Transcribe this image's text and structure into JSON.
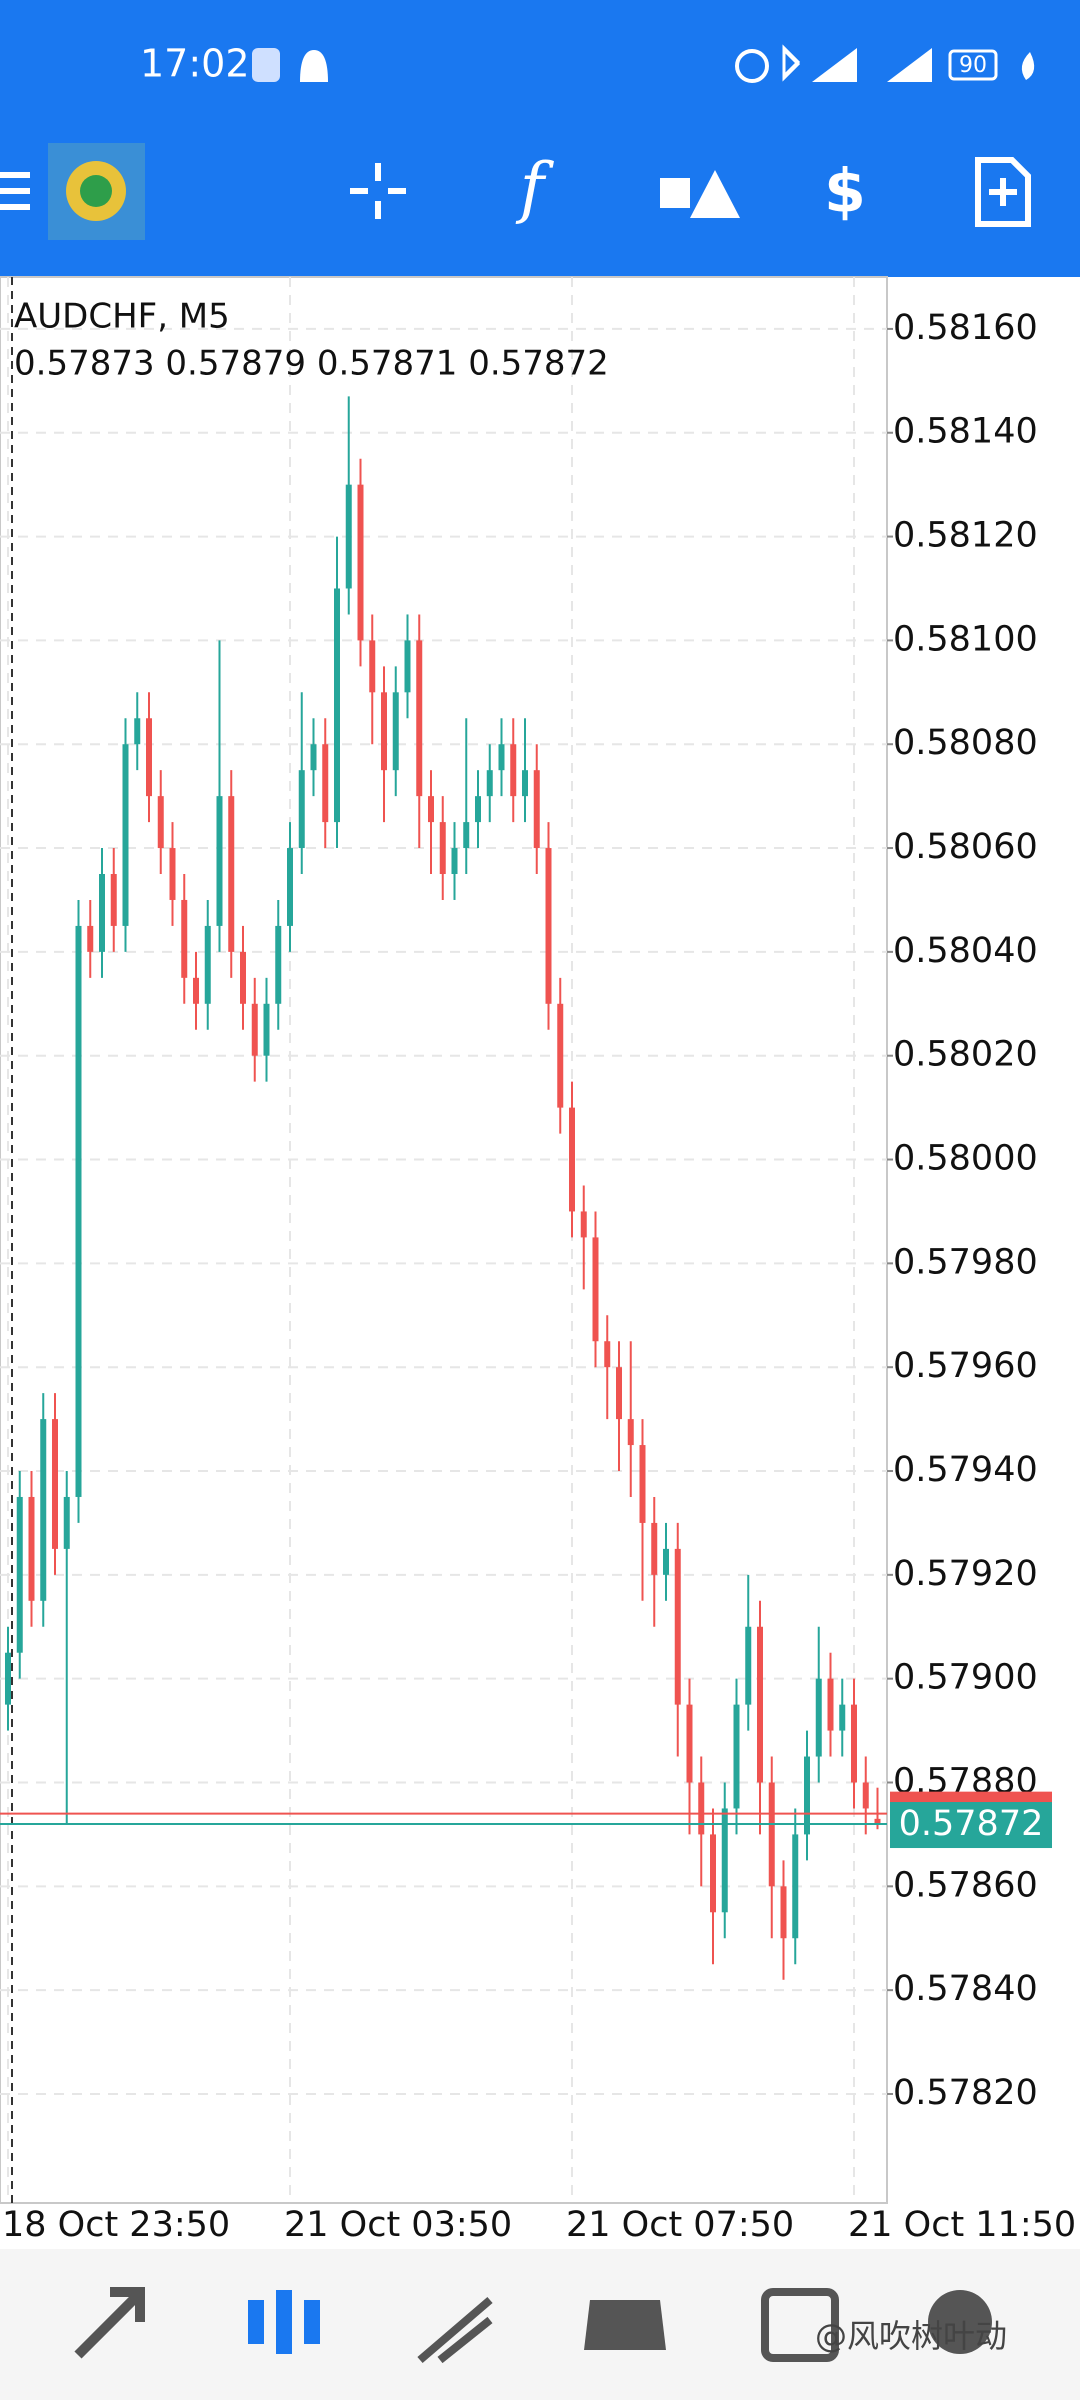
{
  "status_bar": {
    "time": "17:02",
    "battery": "90"
  },
  "watermark": "@风吹树叶动",
  "chart_data": {
    "type": "candlestick",
    "title": "AUDCHF, M5",
    "subtitle": "0.57873 0.57879 0.57871 0.57872",
    "categories": [
      "18 Oct 23:50",
      null,
      null,
      null,
      null,
      null,
      null,
      null,
      null,
      null,
      null,
      null,
      null,
      null,
      null,
      null,
      null,
      null,
      null,
      null,
      null,
      null,
      null,
      null,
      "21 Oct 03:50",
      null,
      null,
      null,
      null,
      null,
      null,
      null,
      null,
      null,
      null,
      null,
      null,
      null,
      null,
      null,
      null,
      null,
      null,
      null,
      null,
      null,
      null,
      null,
      "21 Oct 07:50",
      null,
      null,
      null,
      null,
      null,
      null,
      null,
      null,
      null,
      null,
      null,
      null,
      null,
      null,
      null,
      null,
      null,
      null,
      null,
      null,
      null,
      null,
      null,
      "21 Oct 11:50",
      null,
      null
    ],
    "open": [
      0.57895,
      0.57905,
      0.57935,
      0.57915,
      0.5795,
      0.57925,
      0.57935,
      0.58045,
      0.5804,
      0.58055,
      0.58045,
      0.5808,
      0.58085,
      0.5807,
      0.5806,
      0.5805,
      0.58035,
      0.5803,
      0.58045,
      0.5807,
      0.5804,
      0.5803,
      0.5802,
      0.5803,
      0.58045,
      0.5806,
      0.58075,
      0.5808,
      0.58065,
      0.5811,
      0.5813,
      0.581,
      0.5809,
      0.58075,
      0.5809,
      0.581,
      0.5807,
      0.58065,
      0.58055,
      0.5806,
      0.58065,
      0.5807,
      0.58075,
      0.5808,
      0.5807,
      0.58075,
      0.5806,
      0.5803,
      0.5801,
      0.5799,
      0.57985,
      0.57965,
      0.5796,
      0.5795,
      0.57945,
      0.5793,
      0.5792,
      0.57925,
      0.57895,
      0.5788,
      0.5787,
      0.57855,
      0.57875,
      0.57895,
      0.5791,
      0.5788,
      0.5786,
      0.5785,
      0.5787,
      0.57885,
      0.579,
      0.5789,
      0.57895,
      0.5788,
      0.57873
    ],
    "high": [
      0.5791,
      0.5794,
      0.5794,
      0.57955,
      0.57955,
      0.5794,
      0.5805,
      0.5805,
      0.5806,
      0.5806,
      0.58085,
      0.5809,
      0.5809,
      0.58075,
      0.58065,
      0.58055,
      0.5804,
      0.5805,
      0.581,
      0.58075,
      0.58045,
      0.58035,
      0.58035,
      0.5805,
      0.58065,
      0.5809,
      0.58085,
      0.58085,
      0.5812,
      0.58147,
      0.58135,
      0.58105,
      0.58095,
      0.58095,
      0.58105,
      0.58105,
      0.58075,
      0.5807,
      0.58065,
      0.58085,
      0.58075,
      0.5808,
      0.58085,
      0.58085,
      0.58085,
      0.5808,
      0.58065,
      0.58035,
      0.58015,
      0.57995,
      0.5799,
      0.5797,
      0.57965,
      0.57965,
      0.5795,
      0.57935,
      0.5793,
      0.5793,
      0.579,
      0.57885,
      0.57875,
      0.5788,
      0.579,
      0.5792,
      0.57915,
      0.57885,
      0.57865,
      0.57875,
      0.5789,
      0.5791,
      0.57905,
      0.579,
      0.579,
      0.57885,
      0.57879
    ],
    "low": [
      0.5789,
      0.579,
      0.5791,
      0.5791,
      0.5792,
      0.57872,
      0.5793,
      0.58035,
      0.58035,
      0.5804,
      0.5804,
      0.58075,
      0.58065,
      0.58055,
      0.58045,
      0.5803,
      0.58025,
      0.58025,
      0.5804,
      0.58035,
      0.58025,
      0.58015,
      0.58015,
      0.58025,
      0.5804,
      0.58055,
      0.5807,
      0.5806,
      0.5806,
      0.58105,
      0.58095,
      0.5808,
      0.58065,
      0.5807,
      0.58085,
      0.5806,
      0.58055,
      0.5805,
      0.5805,
      0.58055,
      0.5806,
      0.58065,
      0.5807,
      0.58065,
      0.58065,
      0.58055,
      0.58025,
      0.58005,
      0.57985,
      0.57975,
      0.5796,
      0.5795,
      0.5794,
      0.57935,
      0.57915,
      0.5791,
      0.57915,
      0.57885,
      0.5787,
      0.5786,
      0.57845,
      0.5785,
      0.5787,
      0.5789,
      0.5787,
      0.5785,
      0.57842,
      0.57845,
      0.57865,
      0.5788,
      0.57885,
      0.57885,
      0.57875,
      0.5787,
      0.57871
    ],
    "close": [
      0.57905,
      0.57935,
      0.57915,
      0.5795,
      0.57925,
      0.57935,
      0.58045,
      0.5804,
      0.58055,
      0.58045,
      0.5808,
      0.58085,
      0.5807,
      0.5806,
      0.5805,
      0.58035,
      0.5803,
      0.58045,
      0.5807,
      0.5804,
      0.5803,
      0.5802,
      0.5803,
      0.58045,
      0.5806,
      0.58075,
      0.5808,
      0.58065,
      0.5811,
      0.5813,
      0.581,
      0.5809,
      0.58075,
      0.5809,
      0.581,
      0.5807,
      0.58065,
      0.58055,
      0.5806,
      0.58065,
      0.5807,
      0.58075,
      0.5808,
      0.5807,
      0.58075,
      0.5806,
      0.5803,
      0.5801,
      0.5799,
      0.57985,
      0.57965,
      0.5796,
      0.5795,
      0.57945,
      0.5793,
      0.5792,
      0.57925,
      0.57895,
      0.5788,
      0.5787,
      0.57855,
      0.57875,
      0.57895,
      0.5791,
      0.5788,
      0.5786,
      0.5785,
      0.5787,
      0.57885,
      0.579,
      0.5789,
      0.57895,
      0.5788,
      0.57875,
      0.57872
    ],
    "up_color": "#26a69a",
    "down_color": "#ef5350",
    "bid": {
      "value": 0.57872,
      "label": "0.57872",
      "color": "#26a69a"
    },
    "ask": {
      "value": 0.57874,
      "color": "#ef5350"
    },
    "ylim": [
      0.57799,
      0.5817
    ],
    "yticks": [
      {
        "value": 0.5782,
        "label": "0.57820"
      },
      {
        "value": 0.5784,
        "label": "0.57840"
      },
      {
        "value": 0.5786,
        "label": "0.57860"
      },
      {
        "value": 0.5788,
        "label": "0.57880"
      },
      {
        "value": 0.579,
        "label": "0.57900"
      },
      {
        "value": 0.5792,
        "label": "0.57920"
      },
      {
        "value": 0.5794,
        "label": "0.57940"
      },
      {
        "value": 0.5796,
        "label": "0.57960"
      },
      {
        "value": 0.5798,
        "label": "0.57980"
      },
      {
        "value": 0.58,
        "label": "0.58000"
      },
      {
        "value": 0.5802,
        "label": "0.58020"
      },
      {
        "value": 0.5804,
        "label": "0.58040"
      },
      {
        "value": 0.5806,
        "label": "0.58060"
      },
      {
        "value": 0.5808,
        "label": "0.58080"
      },
      {
        "value": 0.581,
        "label": "0.58100"
      },
      {
        "value": 0.5812,
        "label": "0.58120"
      },
      {
        "value": 0.5814,
        "label": "0.58140"
      },
      {
        "value": 0.5816,
        "label": "0.58160"
      }
    ],
    "grid": true
  }
}
